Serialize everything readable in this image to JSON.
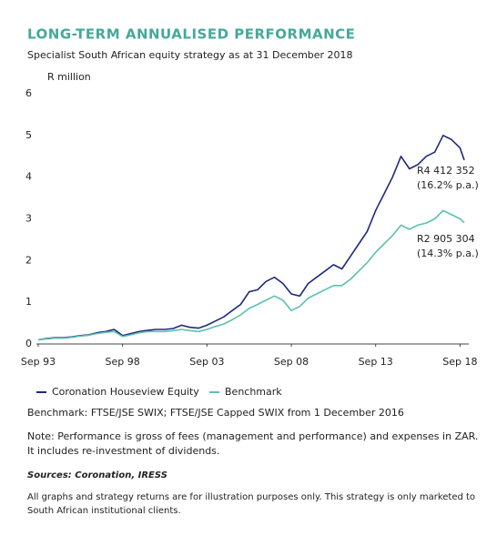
{
  "chart_data": {
    "type": "line",
    "title": "LONG-TERM ANNUALISED PERFORMANCE",
    "subtitle": "Specialist South African equity strategy as at 31 December 2018",
    "y_label": "R million",
    "x": [
      "1993-09",
      "1994-03",
      "1994-09",
      "1995-03",
      "1995-09",
      "1996-03",
      "1996-09",
      "1997-03",
      "1997-09",
      "1998-03",
      "1998-09",
      "1999-03",
      "1999-09",
      "2000-03",
      "2000-09",
      "2001-03",
      "2001-09",
      "2002-03",
      "2002-09",
      "2003-03",
      "2003-09",
      "2004-03",
      "2004-09",
      "2005-03",
      "2005-09",
      "2006-03",
      "2006-09",
      "2007-03",
      "2007-09",
      "2008-03",
      "2008-09",
      "2009-03",
      "2009-09",
      "2010-03",
      "2010-09",
      "2011-03",
      "2011-09",
      "2012-03",
      "2012-09",
      "2013-03",
      "2013-09",
      "2014-03",
      "2014-09",
      "2015-03",
      "2015-09",
      "2016-03",
      "2016-09",
      "2017-03",
      "2017-09",
      "2018-03",
      "2018-09",
      "2018-12"
    ],
    "series": [
      {
        "name": "Coronation Houseview Equity",
        "color": "#1f2a7a",
        "values": [
          0.1,
          0.13,
          0.15,
          0.15,
          0.17,
          0.2,
          0.22,
          0.27,
          0.3,
          0.35,
          0.2,
          0.25,
          0.3,
          0.33,
          0.35,
          0.35,
          0.37,
          0.45,
          0.4,
          0.38,
          0.45,
          0.55,
          0.65,
          0.8,
          0.95,
          1.25,
          1.3,
          1.5,
          1.6,
          1.45,
          1.2,
          1.15,
          1.45,
          1.6,
          1.75,
          1.9,
          1.8,
          2.1,
          2.4,
          2.7,
          3.2,
          3.6,
          4.0,
          4.5,
          4.2,
          4.3,
          4.5,
          4.6,
          5.0,
          4.9,
          4.7,
          4.41
        ]
      },
      {
        "name": "Benchmark",
        "color": "#5cc1ae",
        "values": [
          0.1,
          0.12,
          0.14,
          0.14,
          0.16,
          0.19,
          0.21,
          0.25,
          0.28,
          0.3,
          0.18,
          0.22,
          0.27,
          0.3,
          0.3,
          0.3,
          0.32,
          0.35,
          0.32,
          0.3,
          0.35,
          0.42,
          0.48,
          0.58,
          0.7,
          0.85,
          0.95,
          1.05,
          1.15,
          1.05,
          0.8,
          0.9,
          1.1,
          1.2,
          1.3,
          1.4,
          1.4,
          1.55,
          1.75,
          1.95,
          2.2,
          2.4,
          2.6,
          2.85,
          2.75,
          2.85,
          2.9,
          3.0,
          3.2,
          3.1,
          3.0,
          2.91
        ]
      }
    ],
    "annotations": [
      {
        "series": 0,
        "lines": [
          "R4 412 352",
          "(16.2% p.a.)"
        ]
      },
      {
        "series": 1,
        "lines": [
          "R2 905 304",
          "(14.3% p.a.)"
        ]
      }
    ],
    "xlim": [
      "1993-09",
      "2018-12"
    ],
    "xticks": [
      {
        "value": "1993-09",
        "label": "Sep 93"
      },
      {
        "value": "1998-09",
        "label": "Sep 98"
      },
      {
        "value": "2003-09",
        "label": "Sep 03"
      },
      {
        "value": "2008-09",
        "label": "Sep 08"
      },
      {
        "value": "2013-09",
        "label": "Sep 13"
      },
      {
        "value": "2018-09",
        "label": "Sep 18"
      }
    ],
    "ylim": [
      0,
      6
    ],
    "yticks": [
      0,
      1,
      2,
      3,
      4,
      5,
      6
    ],
    "grid": false
  },
  "footer": {
    "benchmark": "Benchmark: FTSE/JSE SWIX; FTSE/JSE Capped SWIX from 1 December 2016",
    "note": [
      "Note: Performance is gross of fees (management and performance) and expenses in ZAR.",
      "It includes re-investment of dividends."
    ],
    "sources": "Sources: Coronation, IRESS",
    "disclaimer": [
      "All graphs and strategy returns are for illustration purposes only. This strategy is only marketed to",
      "South African institutional clients."
    ]
  }
}
